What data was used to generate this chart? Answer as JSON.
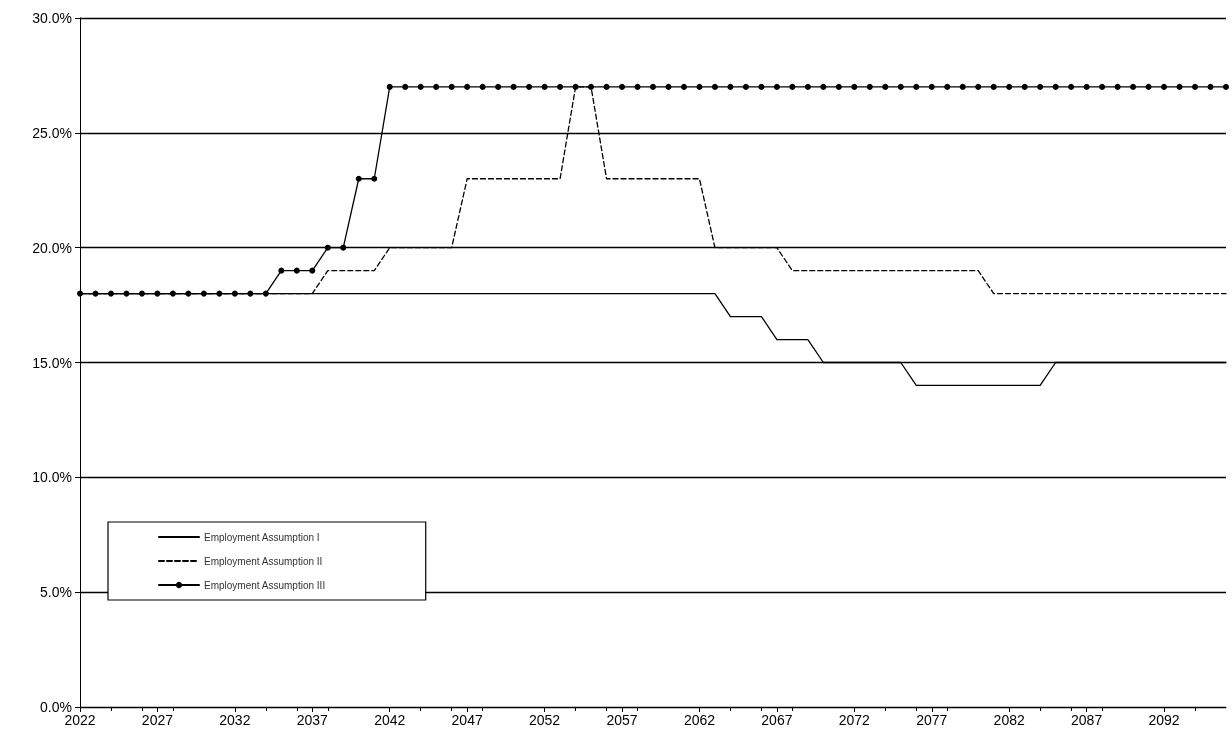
{
  "chart_data": {
    "type": "line",
    "x": [
      2022,
      2023,
      2024,
      2025,
      2026,
      2027,
      2028,
      2029,
      2030,
      2031,
      2032,
      2033,
      2034,
      2035,
      2036,
      2037,
      2038,
      2039,
      2040,
      2041,
      2042,
      2043,
      2044,
      2045,
      2046,
      2047,
      2048,
      2049,
      2050,
      2051,
      2052,
      2053,
      2054,
      2055,
      2056,
      2057,
      2058,
      2059,
      2060,
      2061,
      2062,
      2063,
      2064,
      2065,
      2066,
      2067,
      2068,
      2069,
      2070,
      2071,
      2072,
      2073,
      2074,
      2075,
      2076,
      2077,
      2078,
      2079,
      2080,
      2081,
      2082,
      2083,
      2084,
      2085,
      2086,
      2087,
      2088,
      2089,
      2090,
      2091,
      2092,
      2093,
      2094,
      2095,
      2096
    ],
    "series": [
      {
        "name": "Employment Assumption I",
        "color": "#000000",
        "line_style": "solid",
        "marker": "none",
        "values": [
          18,
          18,
          18,
          18,
          18,
          18,
          18,
          18,
          18,
          18,
          18,
          18,
          18,
          18,
          18,
          18,
          18,
          18,
          18,
          18,
          18,
          18,
          18,
          18,
          18,
          18,
          18,
          18,
          18,
          18,
          18,
          18,
          18,
          18,
          18,
          18,
          18,
          18,
          18,
          18,
          18,
          18,
          17,
          17,
          17,
          16,
          16,
          16,
          15,
          15,
          15,
          15,
          15,
          15,
          14,
          14,
          14,
          14,
          14,
          14,
          14,
          14,
          14,
          15,
          15,
          15,
          15,
          15,
          15,
          15,
          15,
          15,
          15,
          15,
          15
        ]
      },
      {
        "name": "Employment Assumption II",
        "color": "#000000",
        "line_style": "dashed",
        "marker": "none",
        "values": [
          18,
          18,
          18,
          18,
          18,
          18,
          18,
          18,
          18,
          18,
          18,
          18,
          18,
          18,
          18,
          18,
          19,
          19,
          19,
          19,
          20,
          20,
          20,
          20,
          20,
          23,
          23,
          23,
          23,
          23,
          23,
          23,
          27,
          27,
          23,
          23,
          23,
          23,
          23,
          23,
          23,
          20,
          20,
          20,
          20,
          20,
          19,
          19,
          19,
          19,
          19,
          19,
          19,
          19,
          19,
          19,
          19,
          19,
          19,
          18,
          18,
          18,
          18,
          18,
          18,
          18,
          18,
          18,
          18,
          18,
          18,
          18,
          18,
          18,
          18
        ]
      },
      {
        "name": "Employment Assumption III",
        "color": "#000000",
        "line_style": "solid",
        "marker": "circle",
        "values": [
          18,
          18,
          18,
          18,
          18,
          18,
          18,
          18,
          18,
          18,
          18,
          18,
          18,
          19,
          19,
          19,
          20,
          20,
          23,
          23,
          27,
          27,
          27,
          27,
          27,
          27,
          27,
          27,
          27,
          27,
          27,
          27,
          27,
          27,
          27,
          27,
          27,
          27,
          27,
          27,
          27,
          27,
          27,
          27,
          27,
          27,
          27,
          27,
          27,
          27,
          27,
          27,
          27,
          27,
          27,
          27,
          27,
          27,
          27,
          27,
          27,
          27,
          27,
          27,
          27,
          27,
          27,
          27,
          27,
          27,
          27,
          27,
          27,
          27,
          27
        ]
      }
    ],
    "xlim": [
      2022,
      2096
    ],
    "xticks": [
      2022,
      2027,
      2032,
      2037,
      2042,
      2047,
      2052,
      2057,
      2062,
      2067,
      2072,
      2077,
      2082,
      2087,
      2092
    ],
    "ylim": [
      0,
      30
    ],
    "yticks": [
      {
        "value": 0,
        "label": "0.0%"
      },
      {
        "value": 5,
        "label": "5.0%"
      },
      {
        "value": 10,
        "label": "10.0%"
      },
      {
        "value": 15,
        "label": "15.0%"
      },
      {
        "value": 20,
        "label": "20.0%"
      },
      {
        "value": 25,
        "label": "25.0%"
      },
      {
        "value": 30,
        "label": "30.0%"
      }
    ],
    "grid": "y",
    "legend": "bottom left"
  }
}
